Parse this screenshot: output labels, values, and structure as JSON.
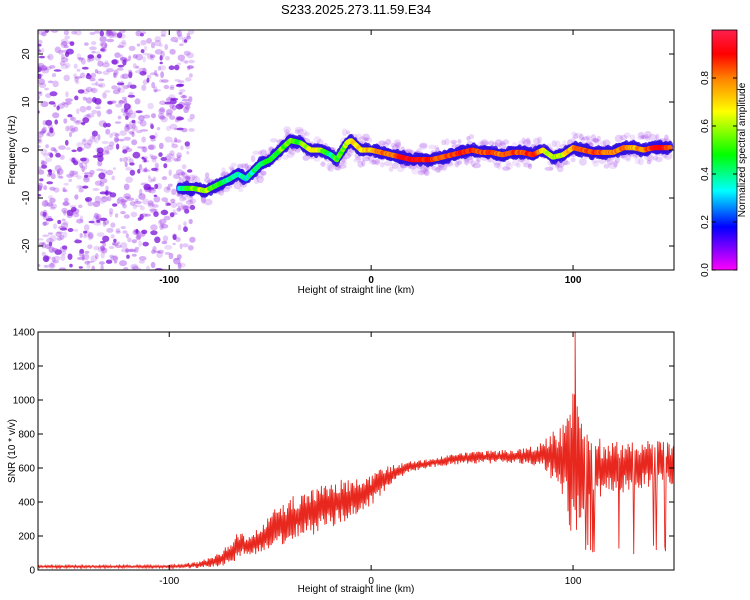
{
  "title": "S233.2025.273.11.59.E34",
  "colors": {
    "noise": "#a040e8",
    "noise_dark": "#7a10d8",
    "snr_line": "#e8281e",
    "axis": "#000000"
  },
  "colormap_stops": [
    "#ff00ff",
    "#0000ff",
    "#00ffff",
    "#00ff00",
    "#ffff00",
    "#ff8000",
    "#ff0000",
    "#ff2050"
  ],
  "chart_data": [
    {
      "type": "heatmap",
      "title": "S233.2025.273.11.59.E34",
      "xlabel": "Height of straight line (km)",
      "ylabel": "Frequency (Hz)",
      "xlim": [
        -165,
        150
      ],
      "ylim": [
        -25,
        25
      ],
      "xticks": [
        -100,
        0,
        100
      ],
      "yticks": [
        -20,
        -10,
        0,
        10,
        20
      ],
      "noise_region_x": [
        -165,
        -88
      ],
      "ridge": {
        "x": [
          -95,
          -88,
          -82,
          -75,
          -70,
          -66,
          -62,
          -55,
          -50,
          -45,
          -40,
          -35,
          -30,
          -25,
          -20,
          -17,
          -12,
          -10,
          -5,
          0,
          5,
          10,
          15,
          20,
          25,
          30,
          35,
          40,
          45,
          50,
          55,
          60,
          65,
          70,
          75,
          80,
          85,
          90,
          95,
          100,
          105,
          110,
          115,
          120,
          125,
          130,
          135,
          140,
          145,
          148
        ],
        "freq": [
          -8,
          -8,
          -8.5,
          -7,
          -6,
          -5,
          -6,
          -3,
          -2,
          0,
          2,
          1.5,
          0,
          0,
          -1,
          -2,
          1.5,
          2,
          0,
          0,
          -0.5,
          -1,
          -1.5,
          -2,
          -2,
          -2,
          -1.5,
          -1,
          -0.5,
          0,
          -0.5,
          -0.5,
          -1,
          -0.5,
          -0.5,
          -1,
          0,
          -1.5,
          -1,
          0.5,
          0,
          -0.5,
          -0.5,
          -0.5,
          0.5,
          0.5,
          0,
          0.5,
          0.5,
          0.5
        ],
        "amplitude": [
          0.3,
          0.5,
          0.55,
          0.4,
          0.35,
          0.3,
          0.3,
          0.4,
          0.4,
          0.45,
          0.5,
          0.45,
          0.55,
          0.55,
          0.35,
          0.45,
          0.5,
          0.6,
          0.6,
          0.65,
          0.75,
          0.7,
          0.85,
          0.9,
          0.85,
          0.8,
          0.75,
          0.8,
          0.85,
          0.8,
          0.75,
          0.8,
          0.7,
          0.8,
          0.75,
          0.85,
          0.6,
          0.5,
          0.55,
          0.7,
          0.75,
          0.8,
          0.75,
          0.7,
          0.75,
          0.65,
          0.7,
          0.85,
          0.9,
          0.7
        ]
      },
      "colorbar": {
        "label": "Normalized spectral amplitude",
        "range": [
          0,
          1
        ],
        "ticks": [
          "0.0",
          "0.2",
          "0.4",
          "0.6",
          "0.8"
        ],
        "tick_values": [
          0,
          0.2,
          0.4,
          0.6,
          0.8
        ]
      }
    },
    {
      "type": "line",
      "xlabel": "Height of straight line (km)",
      "ylabel": "SNR (10 * v/v)",
      "xlim": [
        -165,
        150
      ],
      "ylim": [
        0,
        1400
      ],
      "xticks": [
        -100,
        0,
        100
      ],
      "yticks": [
        0,
        200,
        400,
        600,
        800,
        1000,
        1200,
        1400
      ],
      "envelope": {
        "x": [
          -165,
          -100,
          -85,
          -75,
          -70,
          -65,
          -60,
          -55,
          -50,
          -45,
          -40,
          -35,
          -30,
          -25,
          -20,
          -15,
          -10,
          -5,
          0,
          5,
          10,
          15,
          20,
          30,
          40,
          50,
          60,
          70,
          75,
          80,
          85,
          90,
          95,
          98,
          100,
          103,
          105,
          110,
          115,
          120,
          125,
          130,
          135,
          140,
          145,
          150
        ],
        "base": [
          20,
          20,
          30,
          60,
          100,
          150,
          140,
          180,
          230,
          260,
          300,
          320,
          340,
          360,
          380,
          400,
          420,
          440,
          470,
          520,
          560,
          590,
          610,
          630,
          650,
          660,
          665,
          670,
          670,
          670,
          680,
          670,
          650,
          620,
          600,
          620,
          600,
          600,
          600,
          600,
          610,
          610,
          620,
          610,
          620,
          630
        ],
        "amp": [
          8,
          8,
          20,
          40,
          70,
          80,
          60,
          80,
          110,
          120,
          130,
          140,
          140,
          140,
          130,
          130,
          120,
          100,
          90,
          80,
          60,
          40,
          30,
          30,
          30,
          35,
          40,
          40,
          45,
          60,
          80,
          150,
          250,
          400,
          500,
          350,
          250,
          200,
          180,
          170,
          160,
          150,
          140,
          150,
          140,
          120
        ]
      },
      "peak": {
        "x": 101,
        "y": 1400
      }
    }
  ]
}
